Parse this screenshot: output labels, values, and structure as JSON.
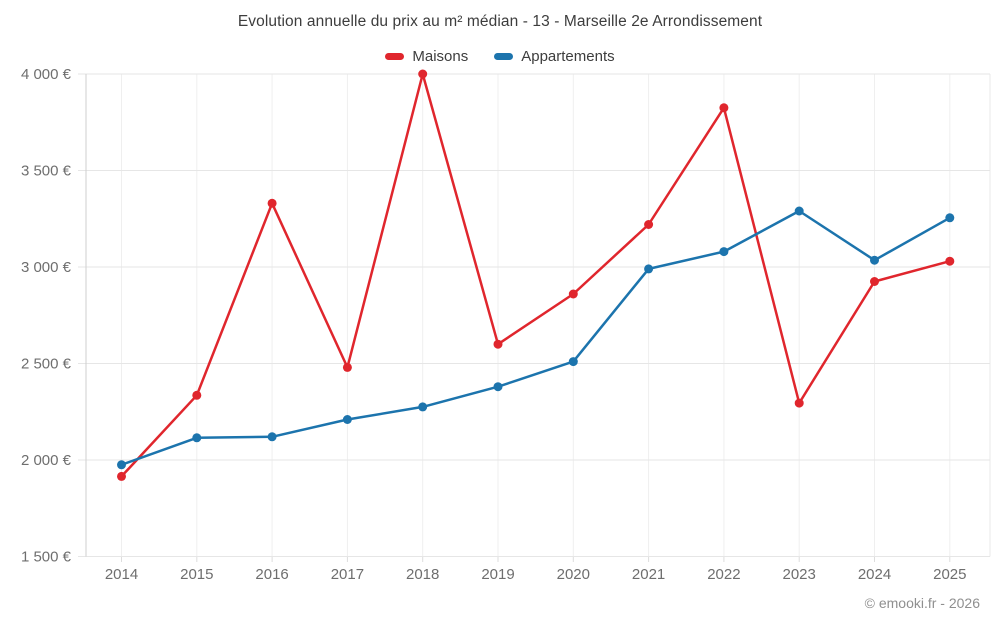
{
  "footer": {
    "credit": "© emooki.fr - 2026"
  },
  "chart_data": {
    "type": "line",
    "title": "Evolution annuelle du prix au m² médian - 13 - Marseille 2e Arrondissement",
    "xlabel": "",
    "ylabel": "",
    "x": [
      2014,
      2015,
      2016,
      2017,
      2018,
      2019,
      2020,
      2021,
      2022,
      2023,
      2024,
      2025
    ],
    "series": [
      {
        "name": "Maisons",
        "color": "#e0262d",
        "values": [
          1915,
          2335,
          3330,
          2480,
          4000,
          2600,
          2860,
          3220,
          3825,
          2295,
          2925,
          3030
        ]
      },
      {
        "name": "Appartements",
        "color": "#1c74ad",
        "values": [
          1975,
          2115,
          2120,
          2210,
          2275,
          2380,
          2510,
          2990,
          3080,
          3290,
          3035,
          3255
        ]
      }
    ],
    "ylim": [
      1500,
      4000
    ],
    "y_ticks": [
      {
        "value": 1500,
        "label": "1 500 €"
      },
      {
        "value": 2000,
        "label": "2 000 €"
      },
      {
        "value": 2500,
        "label": "2 500 €"
      },
      {
        "value": 3000,
        "label": "3 000 €"
      },
      {
        "value": 3500,
        "label": "3 500 €"
      },
      {
        "value": 4000,
        "label": "4 000 €"
      }
    ],
    "grid": true,
    "legend_position": "top",
    "currency": "€"
  }
}
